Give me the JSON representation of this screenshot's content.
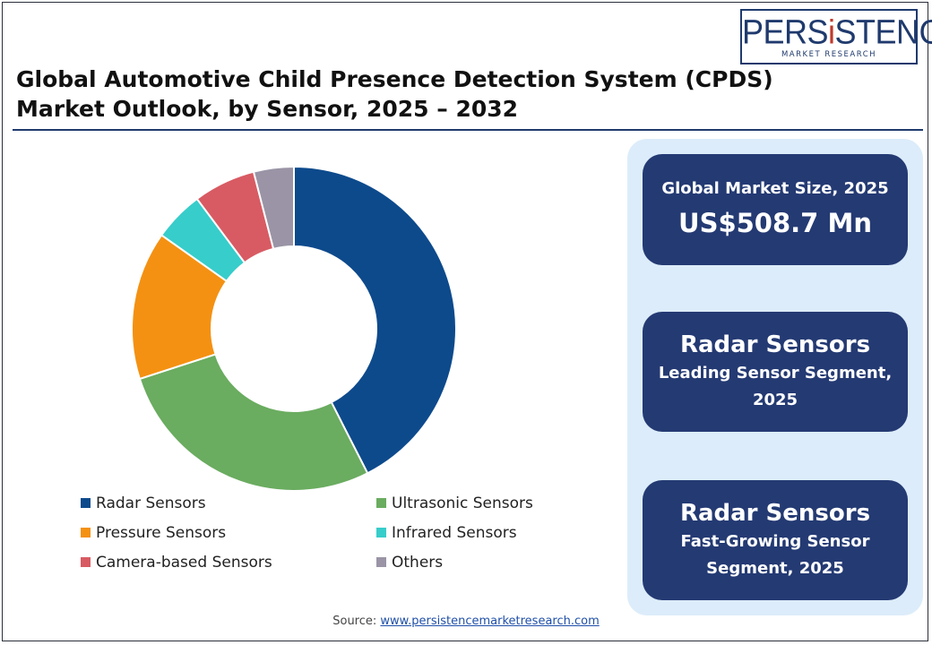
{
  "logo": {
    "main_prefix": "PERS",
    "main_accent": "i",
    "main_suffix": "STENCE",
    "sub": "MARKET RESEARCH"
  },
  "title": "Global Automotive Child Presence Detection System (CPDS) Market Outlook, by Sensor, 2025 – 2032",
  "chart_data": {
    "type": "pie",
    "subtype": "donut",
    "title": "Global Automotive Child Presence Detection System (CPDS) Market Outlook, by Sensor, 2025 – 2032",
    "categories": [
      "Radar Sensors",
      "Ultrasonic Sensors",
      "Pressure Sensors",
      "Infrared Sensors",
      "Camera-based Sensors",
      "Others"
    ],
    "values": [
      42.5,
      27.5,
      14.8,
      5.0,
      6.2,
      4.0
    ],
    "colors": [
      "#0d4a8c",
      "#6aac60",
      "#f49112",
      "#37cdca",
      "#d85b63",
      "#9a94a6"
    ],
    "legend_position": "bottom"
  },
  "cards": [
    {
      "label": "Global Market Size, 2025",
      "value": "US$508.7 Mn"
    },
    {
      "title": "Radar Sensors",
      "line1": "Leading Sensor Segment,",
      "line2": "2025"
    },
    {
      "title": "Radar Sensors",
      "line1": "Fast-Growing Sensor",
      "line2": "Segment, 2025"
    }
  ],
  "source": {
    "prefix": "Source:",
    "link": "www.persistencemarketresearch.com"
  }
}
